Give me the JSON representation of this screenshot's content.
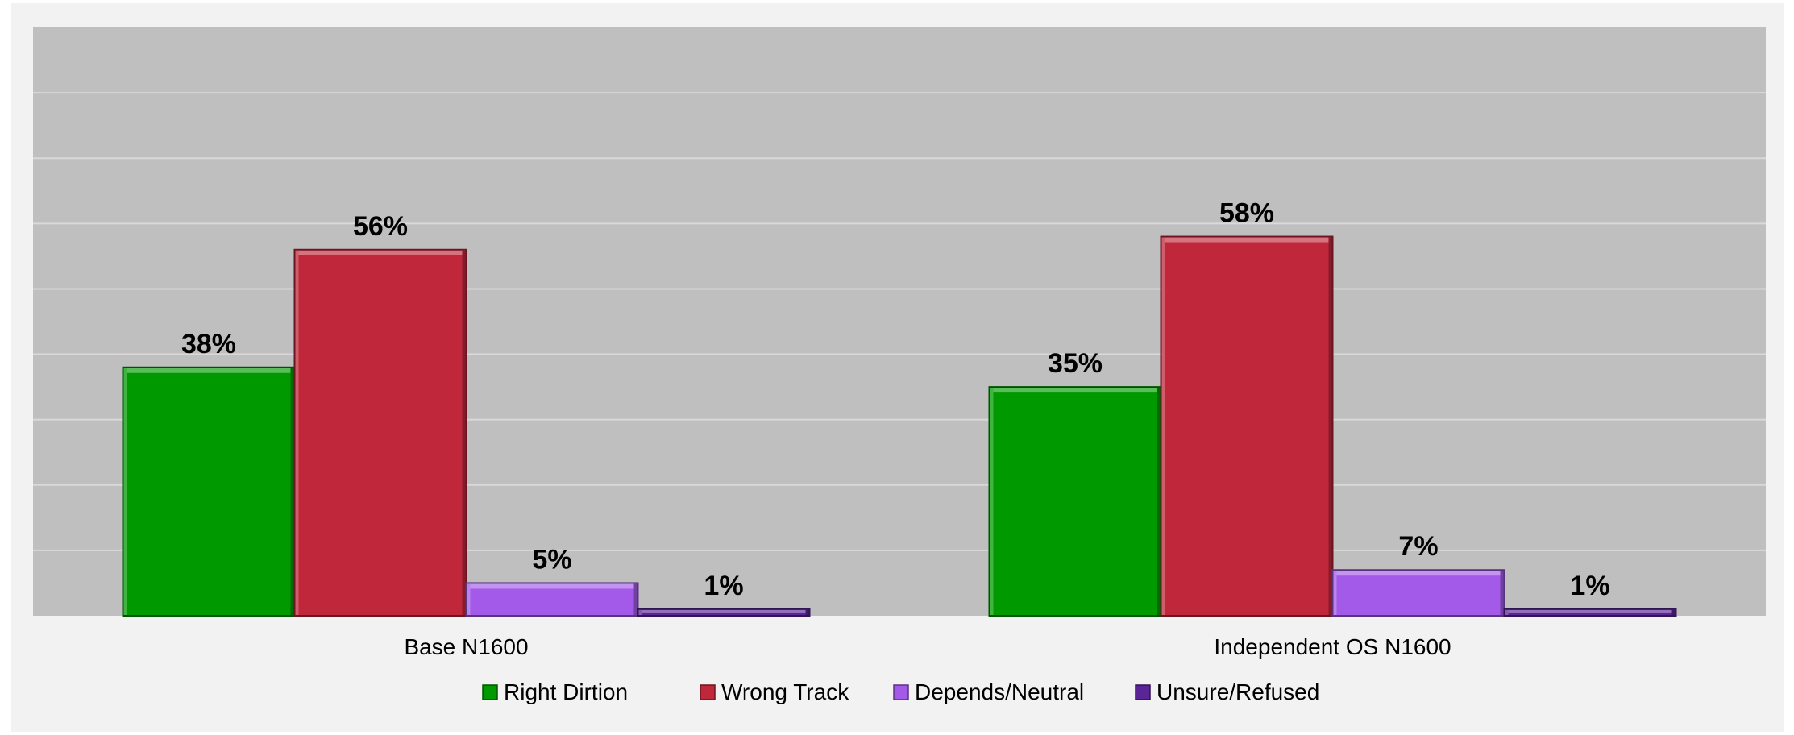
{
  "chart_data": {
    "type": "bar",
    "title": "",
    "xlabel": "",
    "ylabel": "",
    "ylim": [
      0,
      90
    ],
    "grid": true,
    "legend_position": "bottom",
    "categories": [
      "Base N1600",
      "Independent OS N1600"
    ],
    "series": [
      {
        "name": "Right Dirtion",
        "color": "#009900",
        "values": [
          38,
          35
        ],
        "labels": [
          "38%",
          "35%"
        ]
      },
      {
        "name": "Wrong Track",
        "color": "#c0273a",
        "values": [
          56,
          58
        ],
        "labels": [
          "56%",
          "58%"
        ]
      },
      {
        "name": "Depends/Neutral",
        "color": "#a35ae8",
        "values": [
          5,
          7
        ],
        "labels": [
          "5%",
          "7%"
        ]
      },
      {
        "name": "Unsure/Refused",
        "color": "#5a2596",
        "values": [
          1,
          1
        ],
        "labels": [
          "1%",
          "1%"
        ]
      }
    ]
  }
}
